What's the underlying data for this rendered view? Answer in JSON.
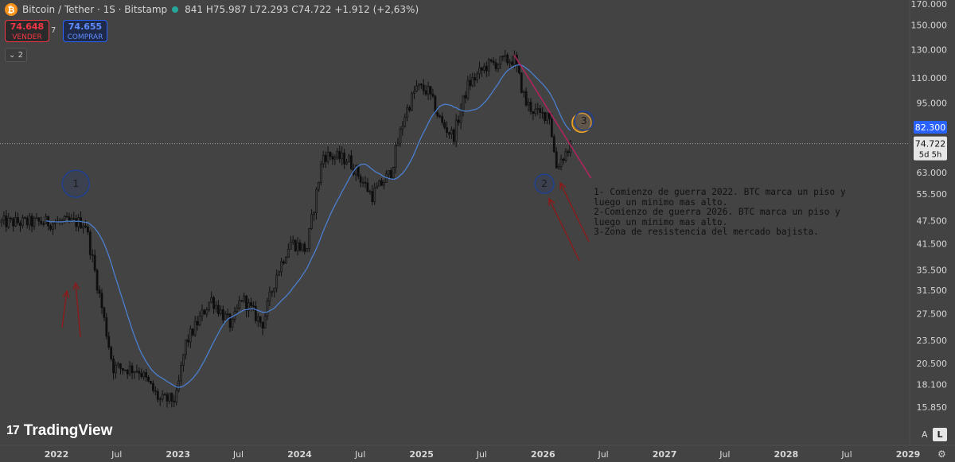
{
  "header": {
    "symbol": "Bitcoin / Tether · 1S · Bitstamp",
    "ohlc": "841 H75.987 L72.293 C74.722 +1.912 (+2,63%)"
  },
  "trade": {
    "sell_price": "74.648",
    "sell_label": "VENDER",
    "spread": "7",
    "buy_price": "74.655",
    "buy_label": "COMPRAR"
  },
  "indicators_toggle": "2",
  "logo_text": "TradingView",
  "axis_buttons": {
    "auto": "A",
    "log": "L"
  },
  "colors": {
    "background": "#434343",
    "candle": "#0e0e0e",
    "ma_line": "#4a7fd0",
    "trendline": "#b0245e",
    "circle_blue": "#1f3f8f",
    "circle_orange": "#f5a623",
    "arrows": "#8b1a1a"
  },
  "chart_data": {
    "type": "candlestick",
    "scale": "log",
    "ylim": [
      15000,
      170000
    ],
    "y_ticks": [
      "170.000",
      "150.000",
      "130.000",
      "110.000",
      "95.000",
      "82.300",
      "74.722",
      "63.000",
      "55.500",
      "47.500",
      "41.500",
      "35.500",
      "31.500",
      "27.500",
      "23.500",
      "20.500",
      "18.100",
      "15.850"
    ],
    "x_ticks": [
      "2022",
      "Jul",
      "2023",
      "Jul",
      "2024",
      "Jul",
      "2025",
      "Jul",
      "2026",
      "Jul",
      "2027",
      "Jul",
      "2028",
      "Jul",
      "2029"
    ],
    "current_price": {
      "label": "74.722",
      "countdown": "5d 5h",
      "value": 74722
    },
    "alert_price": {
      "label": "82.300",
      "value": 82300
    },
    "close_trend": [
      [
        "2021-12-27",
        47000
      ],
      [
        "2022-03-28",
        47000
      ],
      [
        "2022-05-09",
        31000
      ],
      [
        "2022-06-20",
        20000
      ],
      [
        "2022-09-05",
        19800
      ],
      [
        "2022-11-07",
        16500
      ],
      [
        "2022-12-26",
        16600
      ],
      [
        "2023-01-23",
        23000
      ],
      [
        "2023-04-10",
        30000
      ],
      [
        "2023-06-12",
        25500
      ],
      [
        "2023-07-10",
        30300
      ],
      [
        "2023-09-11",
        25800
      ],
      [
        "2023-10-23",
        34500
      ],
      [
        "2023-12-04",
        42000
      ],
      [
        "2024-01-22",
        40000
      ],
      [
        "2024-03-11",
        70000
      ],
      [
        "2024-05-27",
        68000
      ],
      [
        "2024-08-05",
        55000
      ],
      [
        "2024-09-30",
        63000
      ],
      [
        "2024-11-11",
        88000
      ],
      [
        "2024-12-16",
        104000
      ],
      [
        "2025-01-20",
        102000
      ],
      [
        "2025-03-03",
        84000
      ],
      [
        "2025-04-07",
        78000
      ],
      [
        "2025-05-19",
        105000
      ],
      [
        "2025-07-14",
        118000
      ],
      [
        "2025-08-11",
        120000
      ],
      [
        "2025-10-06",
        123000
      ],
      [
        "2025-11-10",
        95000
      ],
      [
        "2025-12-22",
        88000
      ],
      [
        "2026-01-19",
        90000
      ],
      [
        "2026-02-09",
        65000
      ],
      [
        "2026-02-23",
        68000
      ],
      [
        "2026-03-16",
        72000
      ],
      [
        "2026-03-30",
        74722
      ]
    ],
    "ma_series_name": "",
    "annotations": {
      "markers": [
        {
          "label": "1",
          "date": "2022-02-28",
          "value": 59000,
          "shape": "circle"
        },
        {
          "label": "2",
          "date": "2026-01-05",
          "value": 59000,
          "shape": "circle"
        },
        {
          "label": "3",
          "date": "2026-05-04",
          "value": 85500,
          "shape": "circle"
        }
      ],
      "resistance_zone": {
        "date": "2026-04-27",
        "value": 84500
      },
      "trendline": {
        "from": [
          "2025-10-06",
          126000
        ],
        "to": [
          "2026-05-25",
          61000
        ]
      },
      "note_lines": [
        "1- Comienzo de guerra 2022. BTC marca un piso y",
        "luego un minimo mas alto.",
        "2-Comienzo de guerra 2026. BTC marca un piso y",
        "luego un minimo mas alto.",
        "3-Zona de resistencia del mercado bajista."
      ]
    }
  }
}
